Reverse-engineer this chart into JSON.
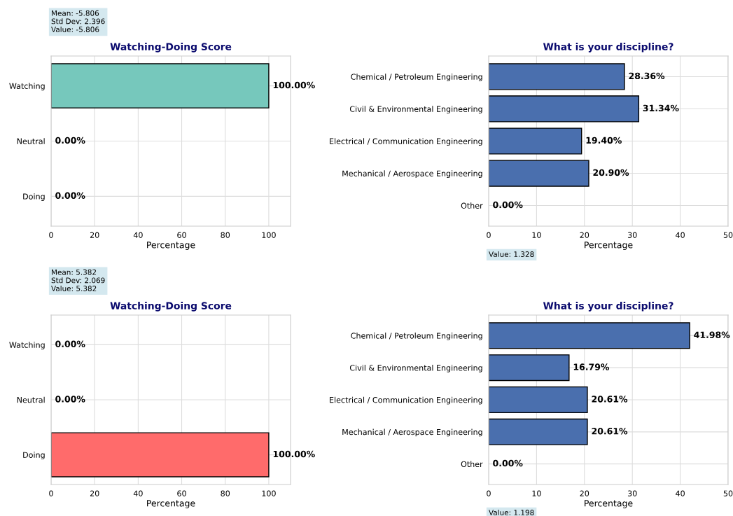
{
  "chart_data": [
    {
      "type": "bar",
      "orientation": "horizontal",
      "title": "Watching-Doing Score",
      "xlabel": "Percentage",
      "categories": [
        "Watching",
        "Neutral",
        "Doing"
      ],
      "values": [
        100,
        0,
        0
      ],
      "colors": [
        "#76c8bc",
        "#76c8bc",
        "#76c8bc"
      ],
      "value_labels": [
        "100.00%",
        "0.00%",
        "0.00%"
      ],
      "xlim": [
        0,
        110
      ],
      "xticks": [
        0,
        20,
        40,
        60,
        80,
        100
      ],
      "grid": true,
      "annotations": [
        "Mean: -5.806\nStd Dev: 2.396\nValue: -5.806"
      ]
    },
    {
      "type": "bar",
      "orientation": "horizontal",
      "title": "What is your discipline?",
      "xlabel": "Percentage",
      "categories": [
        "Chemical / Petroleum Engineering",
        "Civil & Environmental Engineering",
        "Electrical / Communication Engineering",
        "Mechanical / Aerospace Engineering",
        "Other"
      ],
      "values": [
        28.36,
        31.34,
        19.4,
        20.9,
        0
      ],
      "colors": [
        "#4a6fae",
        "#4a6fae",
        "#4a6fae",
        "#4a6fae",
        "#4a6fae"
      ],
      "value_labels": [
        "28.36%",
        "31.34%",
        "19.40%",
        "20.90%",
        "0.00%"
      ],
      "xlim": [
        0,
        50
      ],
      "xticks": [
        0,
        10,
        20,
        30,
        40,
        50
      ],
      "grid": true,
      "annotations": [
        "Value: 1.328"
      ]
    },
    {
      "type": "bar",
      "orientation": "horizontal",
      "title": "Watching-Doing Score",
      "xlabel": "Percentage",
      "categories": [
        "Watching",
        "Neutral",
        "Doing"
      ],
      "values": [
        0,
        0,
        100
      ],
      "colors": [
        "#ff6b6b",
        "#ff6b6b",
        "#ff6b6b"
      ],
      "value_labels": [
        "0.00%",
        "0.00%",
        "100.00%"
      ],
      "xlim": [
        0,
        110
      ],
      "xticks": [
        0,
        20,
        40,
        60,
        80,
        100
      ],
      "grid": true,
      "annotations": [
        "Mean: 5.382\nStd Dev: 2.069\nValue: 5.382"
      ]
    },
    {
      "type": "bar",
      "orientation": "horizontal",
      "title": "What is your discipline?",
      "xlabel": "Percentage",
      "categories": [
        "Chemical / Petroleum Engineering",
        "Civil & Environmental Engineering",
        "Electrical / Communication Engineering",
        "Mechanical / Aerospace Engineering",
        "Other"
      ],
      "values": [
        41.98,
        16.79,
        20.61,
        20.61,
        0
      ],
      "colors": [
        "#4a6fae",
        "#4a6fae",
        "#4a6fae",
        "#4a6fae",
        "#4a6fae"
      ],
      "value_labels": [
        "41.98%",
        "16.79%",
        "20.61%",
        "20.61%",
        "0.00%"
      ],
      "xlim": [
        0,
        50
      ],
      "xticks": [
        0,
        10,
        20,
        30,
        40,
        50
      ],
      "grid": true,
      "annotations": [
        "Value: 1.198"
      ]
    }
  ]
}
